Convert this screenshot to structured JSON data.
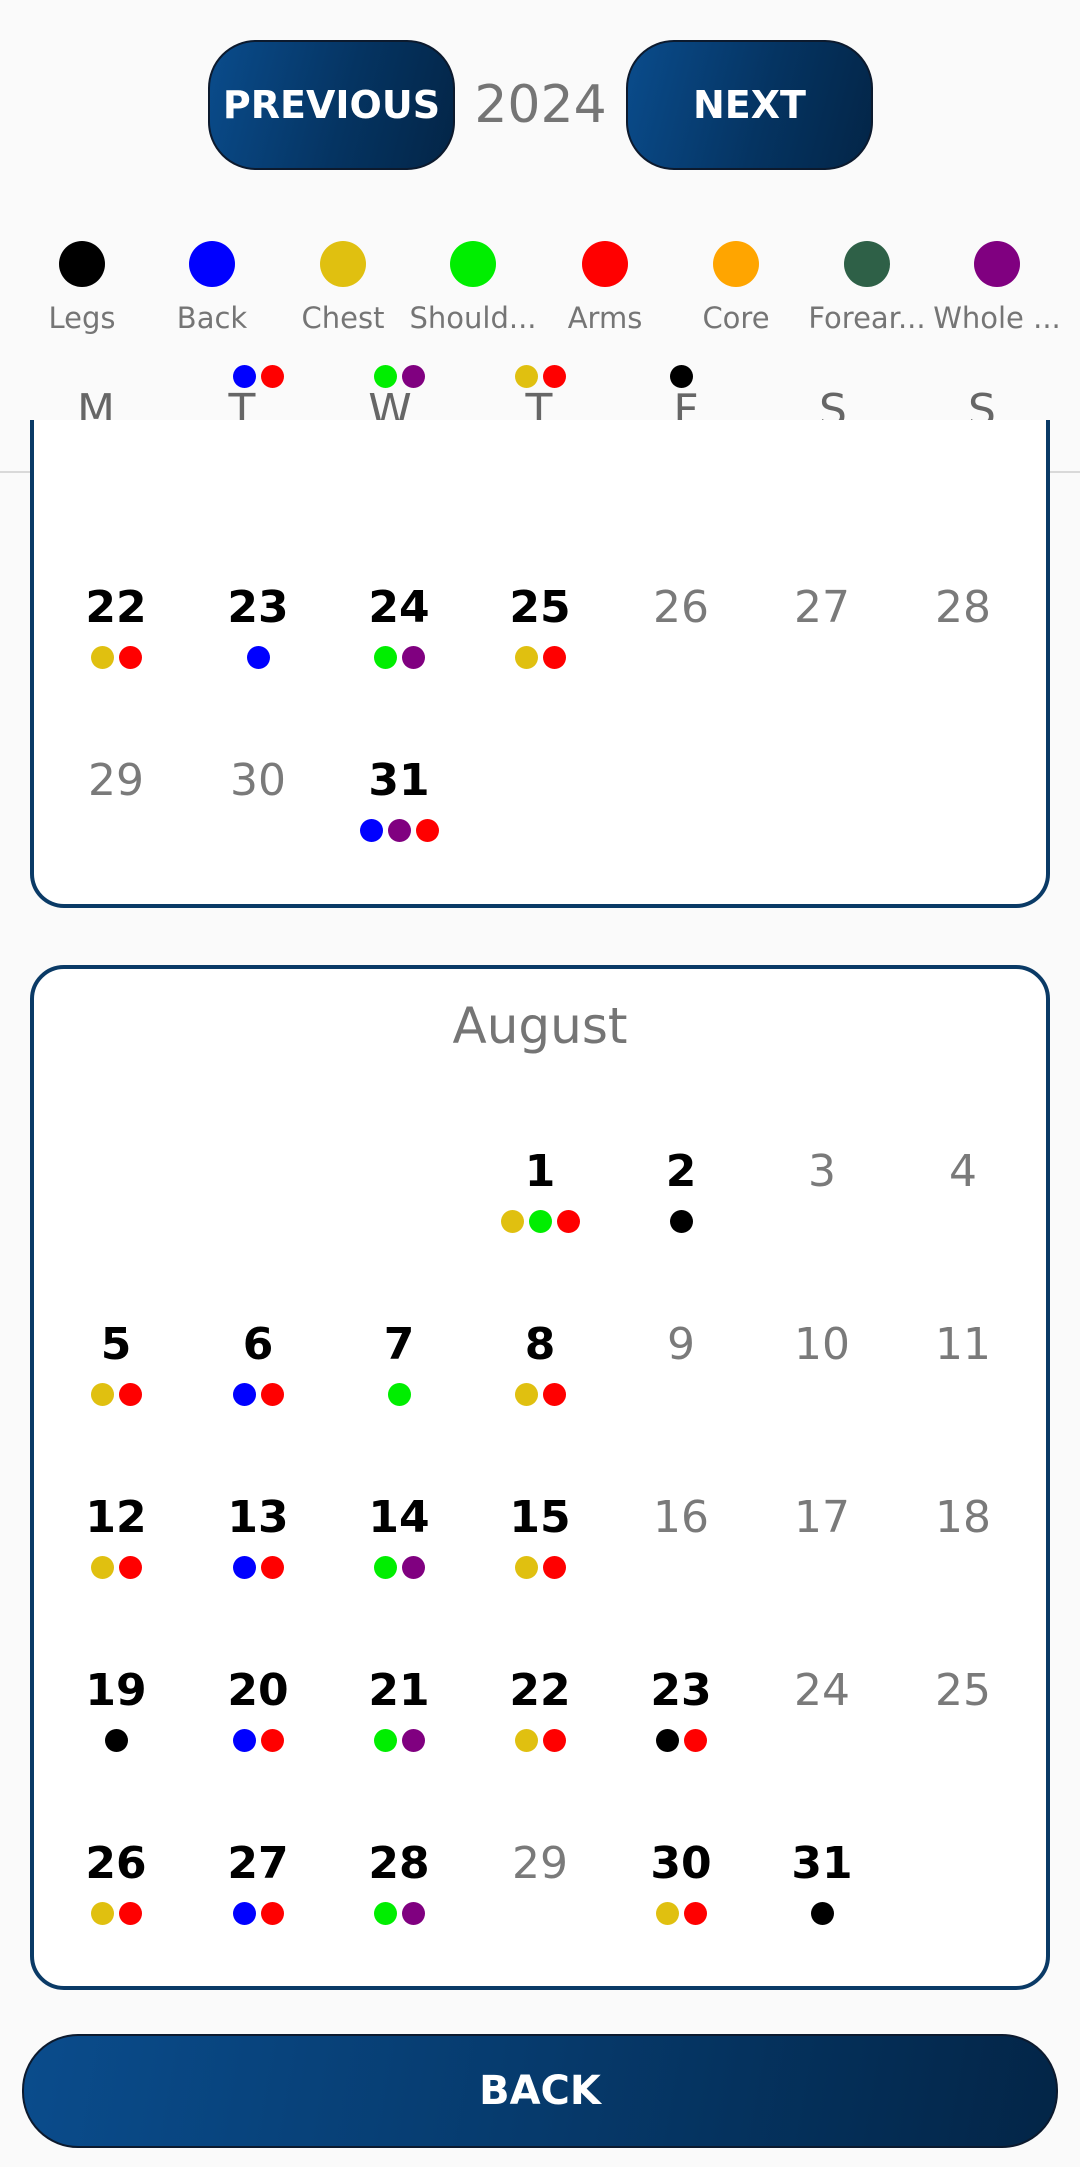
{
  "header": {
    "prev_label": "PREVIOUS",
    "next_label": "NEXT",
    "year": "2024"
  },
  "legend": [
    {
      "label": "Legs",
      "color": "#000000"
    },
    {
      "label": "Back",
      "color": "#0000ff"
    },
    {
      "label": "Chest",
      "color": "#e0c010"
    },
    {
      "label": "Should...",
      "color": "#00ee00"
    },
    {
      "label": "Arms",
      "color": "#ff0000"
    },
    {
      "label": "Core",
      "color": "#ffa500"
    },
    {
      "label": "Forear...",
      "color": "#2e6047"
    },
    {
      "label": "Whole ...",
      "color": "#800080"
    }
  ],
  "weekdays": [
    "M",
    "T",
    "W",
    "T",
    "F",
    "S",
    "S"
  ],
  "months": [
    {
      "name": "",
      "weeks": [
        [
          {
            "day": "",
            "on": false,
            "dots": []
          },
          {
            "day": "",
            "on": false,
            "dots": [
              "Back",
              "Arms"
            ]
          },
          {
            "day": "",
            "on": false,
            "dots": [
              "Shoulders",
              "Whole"
            ]
          },
          {
            "day": "",
            "on": false,
            "dots": [
              "Chest",
              "Arms"
            ]
          },
          {
            "day": "",
            "on": false,
            "dots": [
              "Legs"
            ]
          },
          {
            "day": "",
            "on": false,
            "dots": []
          },
          {
            "day": "",
            "on": false,
            "dots": []
          }
        ],
        [
          {
            "day": "22",
            "on": true,
            "dots": [
              "Chest",
              "Arms"
            ]
          },
          {
            "day": "23",
            "on": true,
            "dots": [
              "Back"
            ]
          },
          {
            "day": "24",
            "on": true,
            "dots": [
              "Shoulders",
              "Whole"
            ]
          },
          {
            "day": "25",
            "on": true,
            "dots": [
              "Chest",
              "Arms"
            ]
          },
          {
            "day": "26",
            "on": false,
            "dots": []
          },
          {
            "day": "27",
            "on": false,
            "dots": []
          },
          {
            "day": "28",
            "on": false,
            "dots": []
          }
        ],
        [
          {
            "day": "29",
            "on": false,
            "dots": []
          },
          {
            "day": "30",
            "on": false,
            "dots": []
          },
          {
            "day": "31",
            "on": true,
            "dots": [
              "Back",
              "Whole",
              "Arms"
            ]
          },
          {
            "day": "",
            "on": false,
            "dots": []
          },
          {
            "day": "",
            "on": false,
            "dots": []
          },
          {
            "day": "",
            "on": false,
            "dots": []
          },
          {
            "day": "",
            "on": false,
            "dots": []
          }
        ]
      ]
    },
    {
      "name": "August",
      "weeks": [
        [
          {
            "day": "",
            "on": false,
            "dots": []
          },
          {
            "day": "",
            "on": false,
            "dots": []
          },
          {
            "day": "",
            "on": false,
            "dots": []
          },
          {
            "day": "1",
            "on": true,
            "dots": [
              "Chest",
              "Shoulders",
              "Arms"
            ]
          },
          {
            "day": "2",
            "on": true,
            "dots": [
              "Legs"
            ]
          },
          {
            "day": "3",
            "on": false,
            "dots": []
          },
          {
            "day": "4",
            "on": false,
            "dots": []
          }
        ],
        [
          {
            "day": "5",
            "on": true,
            "dots": [
              "Chest",
              "Arms"
            ]
          },
          {
            "day": "6",
            "on": true,
            "dots": [
              "Back",
              "Arms"
            ]
          },
          {
            "day": "7",
            "on": true,
            "dots": [
              "Shoulders"
            ]
          },
          {
            "day": "8",
            "on": true,
            "dots": [
              "Chest",
              "Arms"
            ]
          },
          {
            "day": "9",
            "on": false,
            "dots": []
          },
          {
            "day": "10",
            "on": false,
            "dots": []
          },
          {
            "day": "11",
            "on": false,
            "dots": []
          }
        ],
        [
          {
            "day": "12",
            "on": true,
            "dots": [
              "Chest",
              "Arms"
            ]
          },
          {
            "day": "13",
            "on": true,
            "dots": [
              "Back",
              "Arms"
            ]
          },
          {
            "day": "14",
            "on": true,
            "dots": [
              "Shoulders",
              "Whole"
            ]
          },
          {
            "day": "15",
            "on": true,
            "dots": [
              "Chest",
              "Arms"
            ]
          },
          {
            "day": "16",
            "on": false,
            "dots": []
          },
          {
            "day": "17",
            "on": false,
            "dots": []
          },
          {
            "day": "18",
            "on": false,
            "dots": []
          }
        ],
        [
          {
            "day": "19",
            "on": true,
            "dots": [
              "Legs"
            ]
          },
          {
            "day": "20",
            "on": true,
            "dots": [
              "Back",
              "Arms"
            ]
          },
          {
            "day": "21",
            "on": true,
            "dots": [
              "Shoulders",
              "Whole"
            ]
          },
          {
            "day": "22",
            "on": true,
            "dots": [
              "Chest",
              "Arms"
            ]
          },
          {
            "day": "23",
            "on": true,
            "dots": [
              "Legs",
              "Arms"
            ]
          },
          {
            "day": "24",
            "on": false,
            "dots": []
          },
          {
            "day": "25",
            "on": false,
            "dots": []
          }
        ],
        [
          {
            "day": "26",
            "on": true,
            "dots": [
              "Chest",
              "Arms"
            ]
          },
          {
            "day": "27",
            "on": true,
            "dots": [
              "Back",
              "Arms"
            ]
          },
          {
            "day": "28",
            "on": true,
            "dots": [
              "Shoulders",
              "Whole"
            ]
          },
          {
            "day": "29",
            "on": false,
            "dots": []
          },
          {
            "day": "30",
            "on": true,
            "dots": [
              "Chest",
              "Arms"
            ]
          },
          {
            "day": "31",
            "on": true,
            "dots": [
              "Legs"
            ]
          },
          {
            "day": "",
            "on": false,
            "dots": []
          }
        ]
      ]
    }
  ],
  "dot_colors": {
    "Legs": "#000000",
    "Back": "#0000ff",
    "Chest": "#e0c010",
    "Shoulders": "#00ee00",
    "Arms": "#ff0000",
    "Whole": "#800080"
  },
  "footer": {
    "back_label": "BACK"
  }
}
